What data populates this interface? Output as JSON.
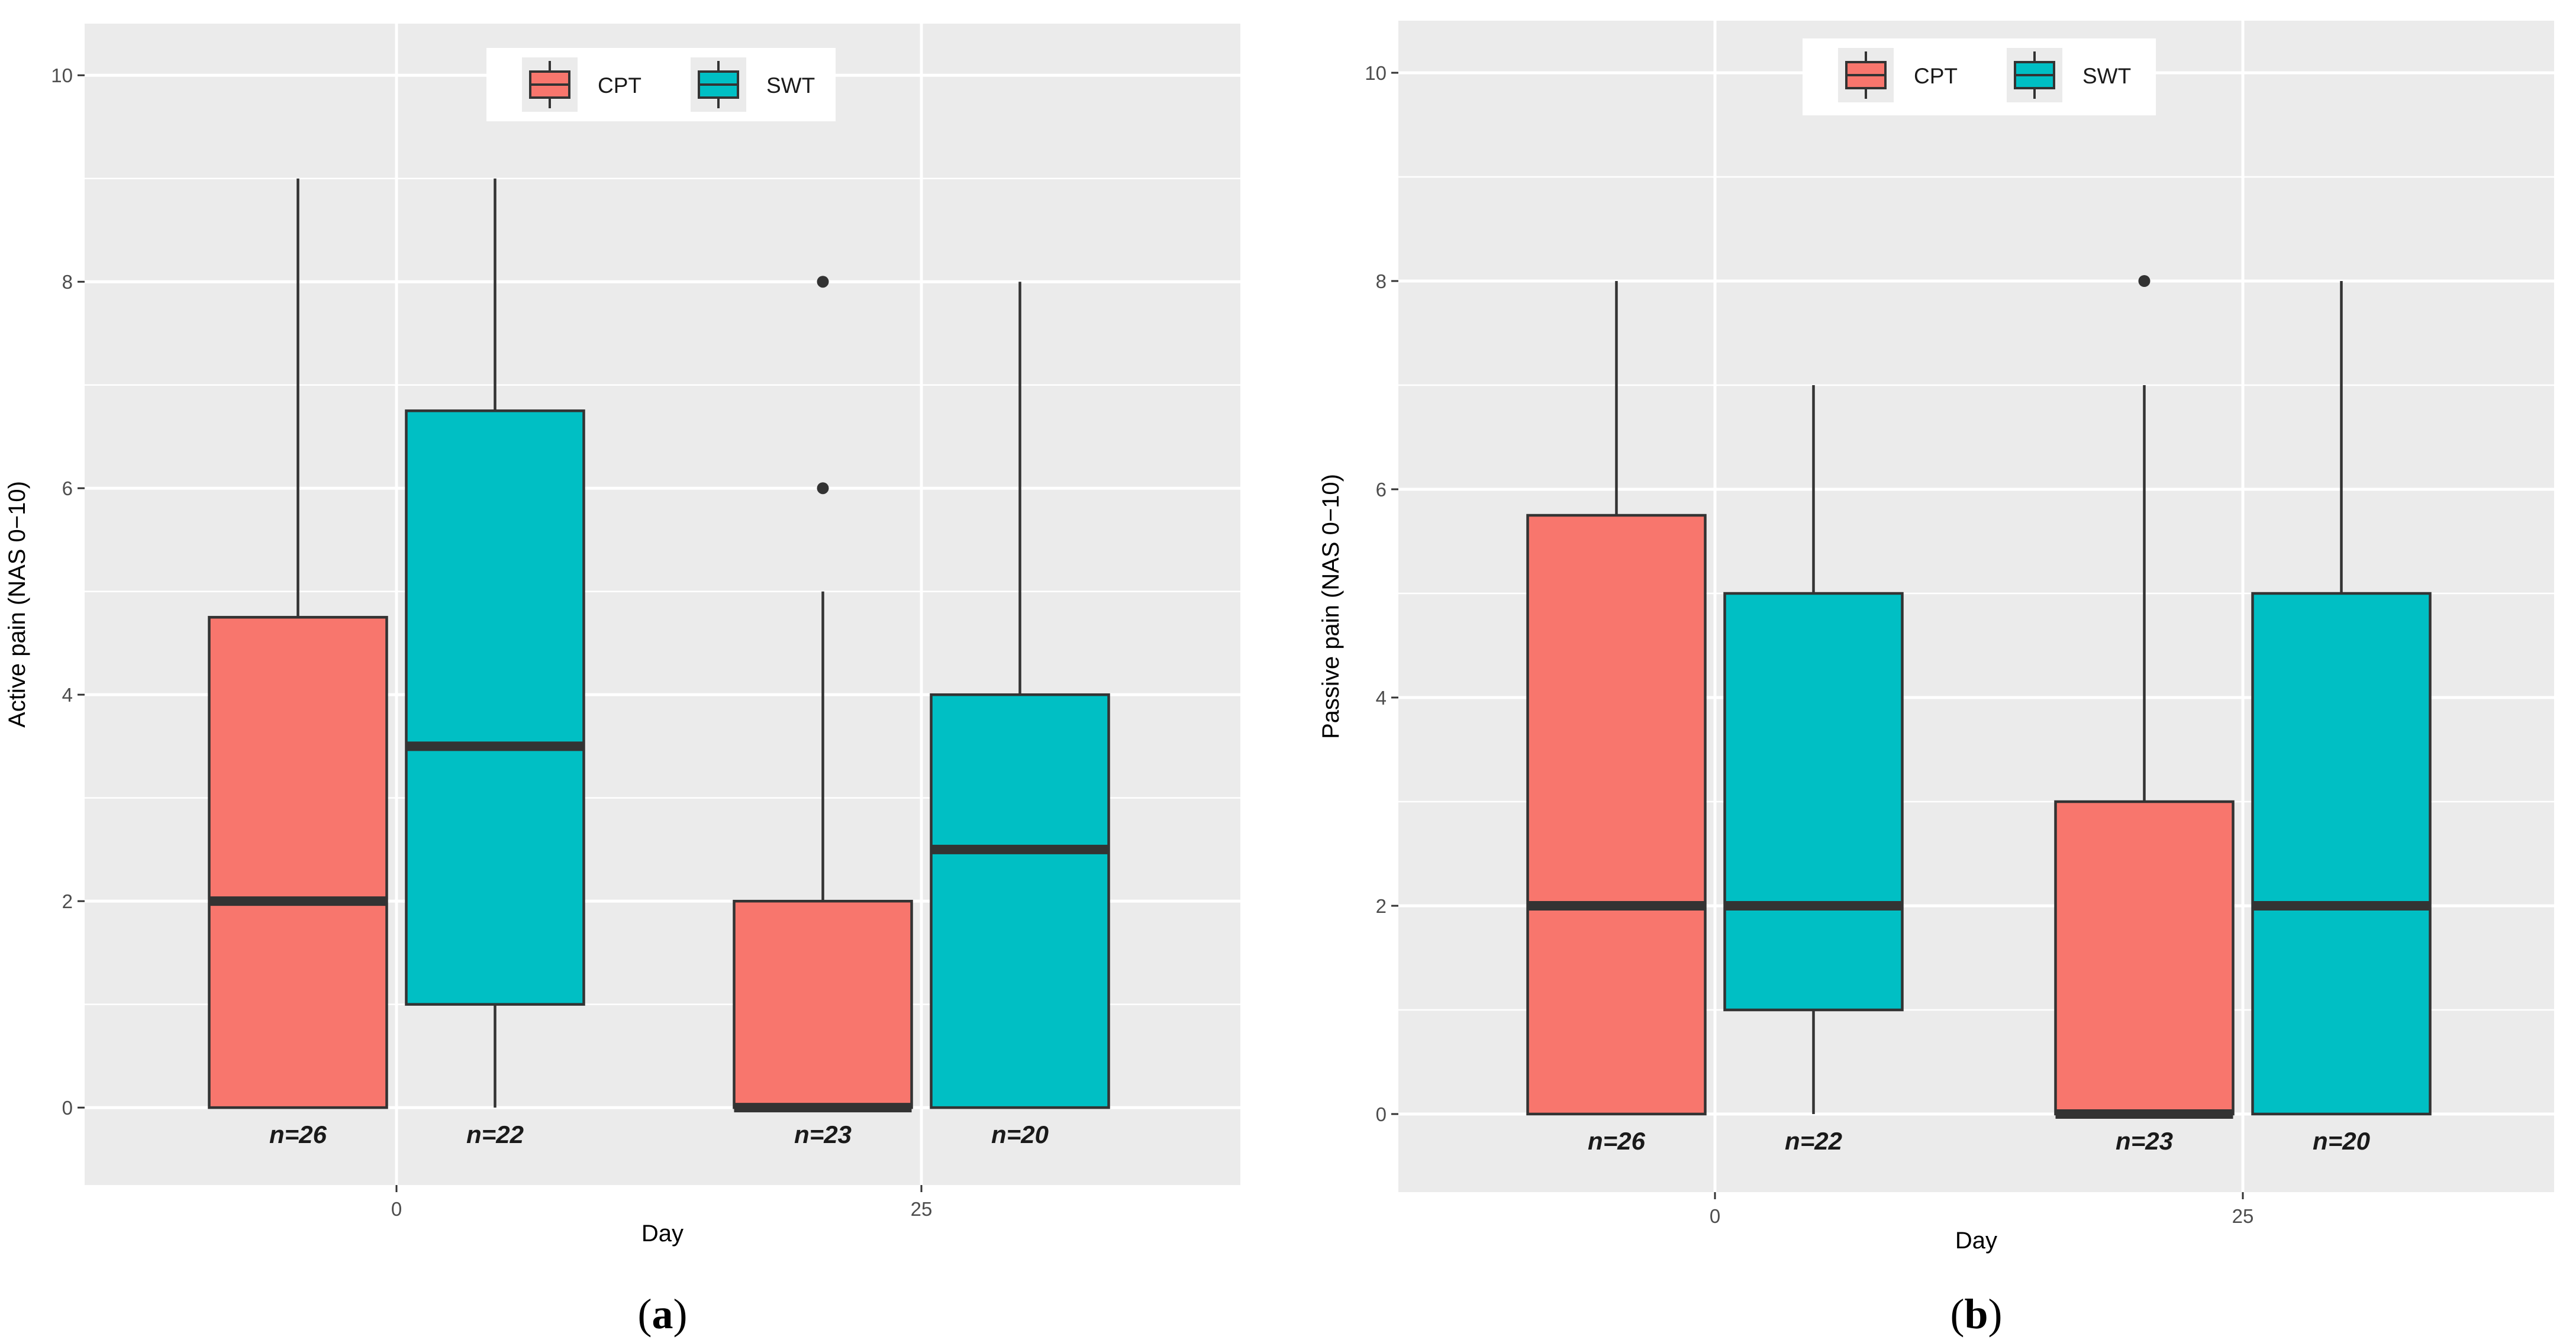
{
  "chart_data": [
    {
      "type": "boxplot",
      "panel_label": "a",
      "xlabel": "Day",
      "ylabel": "Active pain (NAS 0−10)",
      "ylim": [
        -0.75,
        10.5
      ],
      "y_ticks": [
        0,
        2,
        4,
        6,
        8,
        10
      ],
      "x_ticks": [
        "0",
        "25"
      ],
      "legend": {
        "position": "top",
        "entries": [
          "CPT",
          "SWT"
        ]
      },
      "colors": {
        "CPT": "#F8766D",
        "SWT": "#00BFC4"
      },
      "boxes": [
        {
          "day": "0",
          "group": "CPT",
          "min": 0,
          "q1": 0,
          "median": 2,
          "q3": 4.75,
          "max": 9,
          "outliers": [],
          "n_label": "n=26"
        },
        {
          "day": "0",
          "group": "SWT",
          "min": 0,
          "q1": 1,
          "median": 3.5,
          "q3": 6.75,
          "max": 9,
          "outliers": [],
          "n_label": "n=22"
        },
        {
          "day": "25",
          "group": "CPT",
          "min": 0,
          "q1": 0,
          "median": 0,
          "q3": 2,
          "max": 5,
          "outliers": [
            6,
            8
          ],
          "n_label": "n=23"
        },
        {
          "day": "25",
          "group": "SWT",
          "min": 0,
          "q1": 0,
          "median": 2.5,
          "q3": 4,
          "max": 8,
          "outliers": [],
          "n_label": "n=20"
        }
      ]
    },
    {
      "type": "boxplot",
      "panel_label": "b",
      "xlabel": "Day",
      "ylabel": "Passive pain (NAS 0−10)",
      "ylim": [
        -0.75,
        10.5
      ],
      "y_ticks": [
        0,
        2,
        4,
        6,
        8,
        10
      ],
      "x_ticks": [
        "0",
        "25"
      ],
      "legend": {
        "position": "top",
        "entries": [
          "CPT",
          "SWT"
        ]
      },
      "colors": {
        "CPT": "#F8766D",
        "SWT": "#00BFC4"
      },
      "boxes": [
        {
          "day": "0",
          "group": "CPT",
          "min": 0,
          "q1": 0,
          "median": 2,
          "q3": 5.75,
          "max": 8,
          "outliers": [],
          "n_label": "n=26"
        },
        {
          "day": "0",
          "group": "SWT",
          "min": 0,
          "q1": 1,
          "median": 2,
          "q3": 5,
          "max": 7,
          "outliers": [],
          "n_label": "n=22"
        },
        {
          "day": "25",
          "group": "CPT",
          "min": 0,
          "q1": 0,
          "median": 0,
          "q3": 3,
          "max": 7,
          "outliers": [
            8
          ],
          "n_label": "n=23"
        },
        {
          "day": "25",
          "group": "SWT",
          "min": 0,
          "q1": 0,
          "median": 2,
          "q3": 5,
          "max": 8,
          "outliers": [],
          "n_label": "n=20"
        }
      ]
    }
  ],
  "style": {
    "panel_bg": "#EBEBEB",
    "grid": "#FFFFFF",
    "outline": "#333333"
  }
}
